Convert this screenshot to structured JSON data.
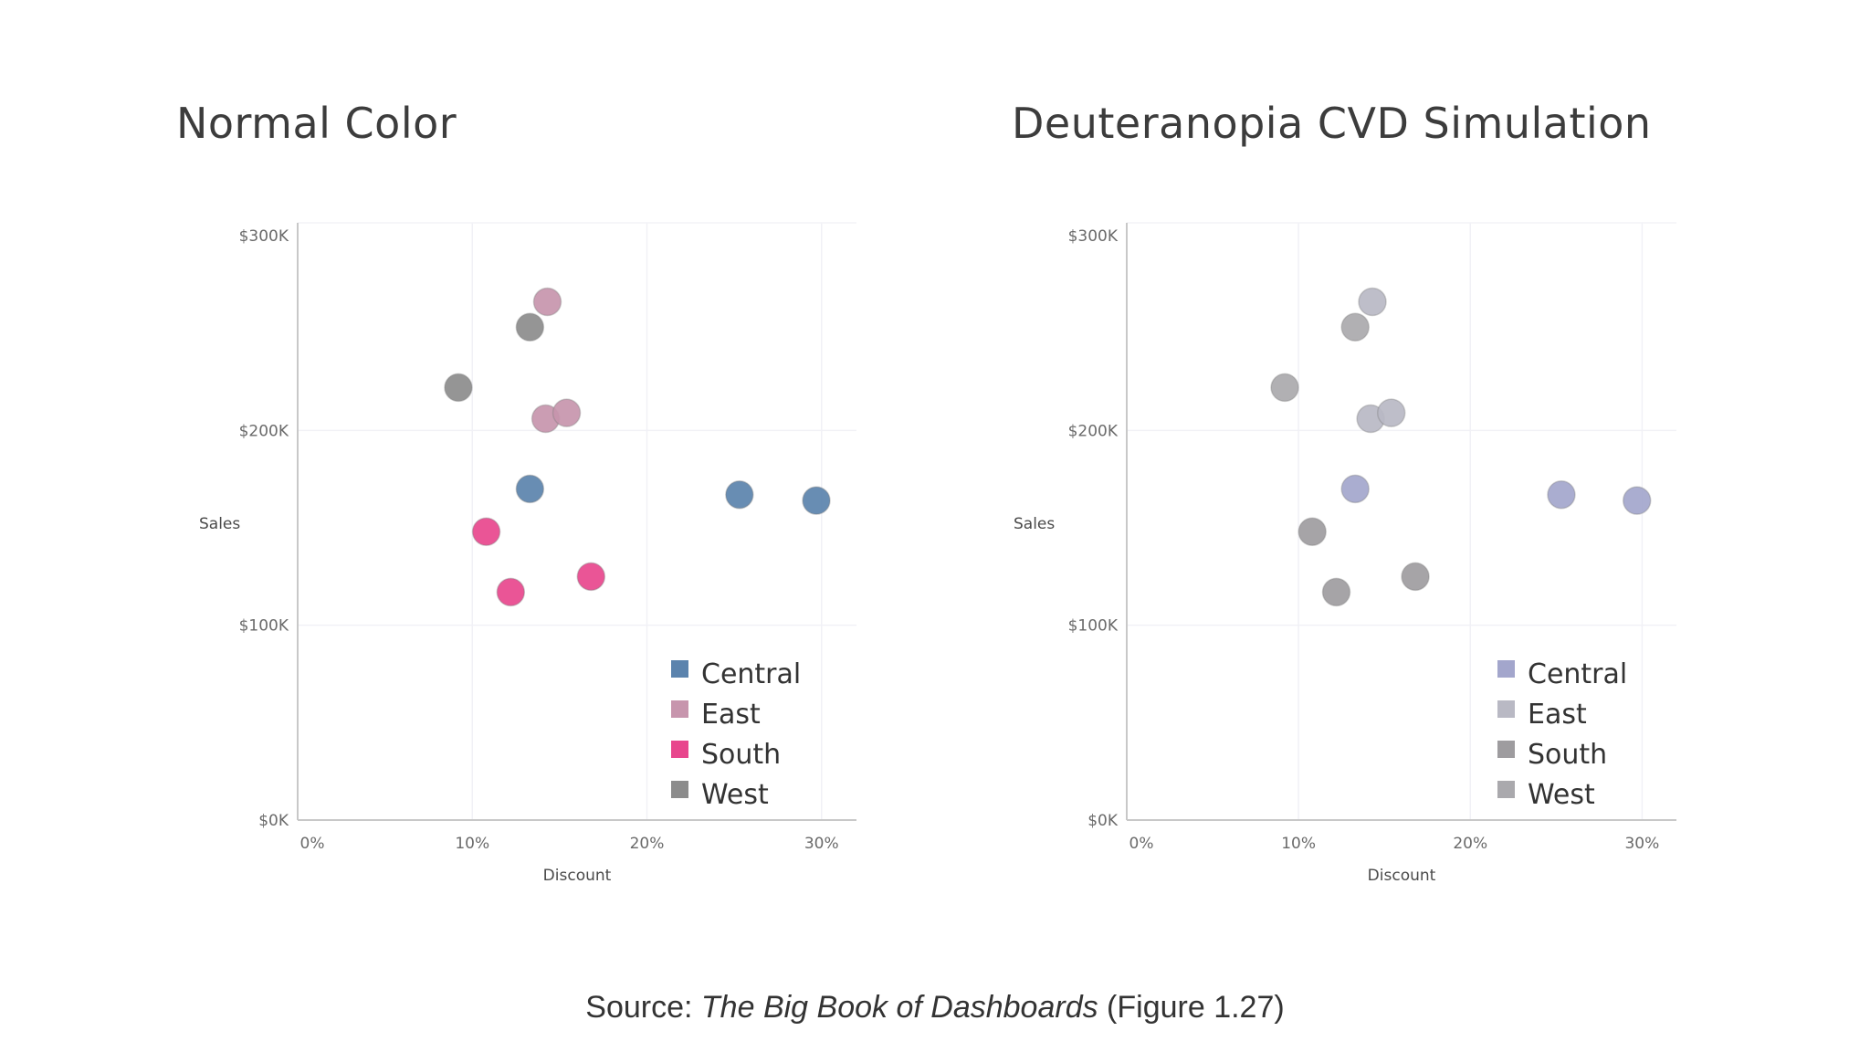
{
  "source": {
    "prefix": "Source: ",
    "book": "The Big Book of Dashboards",
    "suffix": " (Figure 1.27)"
  },
  "chart_data": [
    {
      "type": "scatter",
      "title": "Normal Color",
      "xlabel": "Discount",
      "ylabel": "Sales",
      "x_ticks": [
        "0%",
        "10%",
        "20%",
        "30%"
      ],
      "y_ticks": [
        "$0K",
        "$100K",
        "$200K",
        "$300K"
      ],
      "xlim": [
        0,
        0.32
      ],
      "ylim": [
        0,
        300000
      ],
      "grid": true,
      "legend_position": "bottom-right",
      "series": [
        {
          "name": "Central",
          "color": "#5b83ad",
          "points": [
            [
              0.133,
              170000
            ],
            [
              0.253,
              167000
            ],
            [
              0.297,
              164000
            ]
          ]
        },
        {
          "name": "East",
          "color": "#c795ad",
          "points": [
            [
              0.143,
              266000
            ],
            [
              0.142,
              206000
            ],
            [
              0.154,
              209000
            ]
          ]
        },
        {
          "name": "South",
          "color": "#e8468d",
          "points": [
            [
              0.108,
              148000
            ],
            [
              0.122,
              117000
            ],
            [
              0.168,
              125000
            ]
          ]
        },
        {
          "name": "West",
          "color": "#8c8c8c",
          "points": [
            [
              0.133,
              253000
            ],
            [
              0.092,
              222000
            ]
          ]
        }
      ]
    },
    {
      "type": "scatter",
      "title": "Deuteranopia CVD Simulation",
      "xlabel": "Discount",
      "ylabel": "Sales",
      "x_ticks": [
        "0%",
        "10%",
        "20%",
        "30%"
      ],
      "y_ticks": [
        "$0K",
        "$100K",
        "$200K",
        "$300K"
      ],
      "xlim": [
        0,
        0.32
      ],
      "ylim": [
        0,
        300000
      ],
      "grid": true,
      "legend_position": "bottom-right",
      "series": [
        {
          "name": "Central",
          "color": "#a3a6cc",
          "points": [
            [
              0.133,
              170000
            ],
            [
              0.253,
              167000
            ],
            [
              0.297,
              164000
            ]
          ]
        },
        {
          "name": "East",
          "color": "#b9b9c4",
          "points": [
            [
              0.143,
              266000
            ],
            [
              0.142,
              206000
            ],
            [
              0.154,
              209000
            ]
          ]
        },
        {
          "name": "South",
          "color": "#9e9c9f",
          "points": [
            [
              0.108,
              148000
            ],
            [
              0.122,
              117000
            ],
            [
              0.168,
              125000
            ]
          ]
        },
        {
          "name": "West",
          "color": "#aaa9ad",
          "points": [
            [
              0.133,
              253000
            ],
            [
              0.092,
              222000
            ]
          ]
        }
      ]
    }
  ]
}
